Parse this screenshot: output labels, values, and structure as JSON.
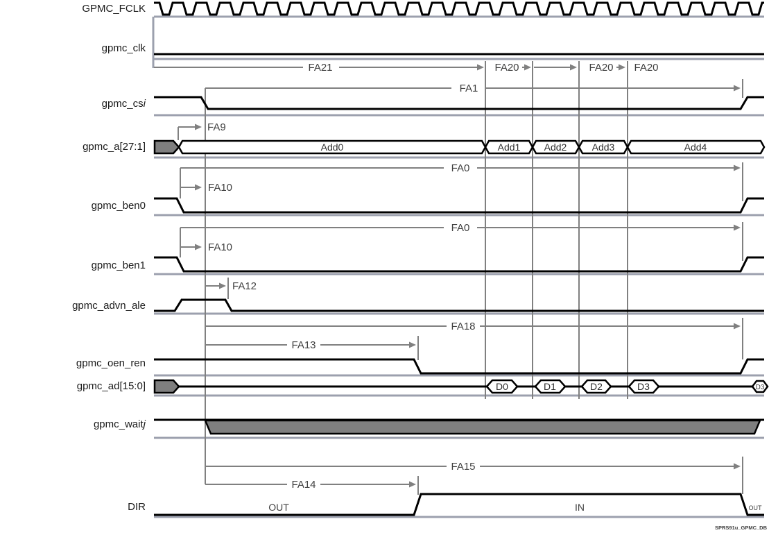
{
  "diagram": {
    "signals": [
      {
        "id": "gpmc_fclk",
        "label": "GPMC_FCLK",
        "suffix": ""
      },
      {
        "id": "gpmc_clk",
        "label": "gpmc_clk",
        "suffix": ""
      },
      {
        "id": "gpmc_cs",
        "label": "gpmc_cs",
        "suffix": "i"
      },
      {
        "id": "gpmc_a",
        "label": "gpmc_a[27:1]",
        "suffix": ""
      },
      {
        "id": "gpmc_ben0",
        "label": "gpmc_ben0",
        "suffix": ""
      },
      {
        "id": "gpmc_ben1",
        "label": "gpmc_ben1",
        "suffix": ""
      },
      {
        "id": "gpmc_advn_ale",
        "label": "gpmc_advn_ale",
        "suffix": ""
      },
      {
        "id": "gpmc_oen_ren",
        "label": "gpmc_oen_ren",
        "suffix": ""
      },
      {
        "id": "gpmc_ad",
        "label": "gpmc_ad[15:0]",
        "suffix": ""
      },
      {
        "id": "gpmc_wait",
        "label": "gpmc_wait",
        "suffix": "j"
      },
      {
        "id": "dir",
        "label": "DIR",
        "suffix": ""
      }
    ],
    "timing_labels": {
      "fa21": "FA21",
      "fa20_1": "FA20",
      "fa20_2": "FA20",
      "fa20_3": "FA20",
      "fa1": "FA1",
      "fa9": "FA9",
      "fa0_ben0": "FA0",
      "fa10_ben0": "FA10",
      "fa0_ben1": "FA0",
      "fa10_ben1": "FA10",
      "fa12": "FA12",
      "fa18": "FA18",
      "fa13": "FA13",
      "fa15": "FA15",
      "fa14": "FA14"
    },
    "address_bus": {
      "cells": [
        "Add0",
        "Add1",
        "Add2",
        "Add3",
        "Add4"
      ]
    },
    "data_bus": {
      "cells": [
        "D0",
        "D1",
        "D2",
        "D3"
      ],
      "last_cell": "D3"
    },
    "dir_states": {
      "out": "OUT",
      "in": "IN",
      "out_end": "OUT"
    },
    "watermark": "SPRS91u_GPMC_DB",
    "colors": {
      "signal": "#000000",
      "measure": "#808080",
      "baseline": "#9ca0ae",
      "dontcare_fill": "#7f7f7f"
    }
  }
}
